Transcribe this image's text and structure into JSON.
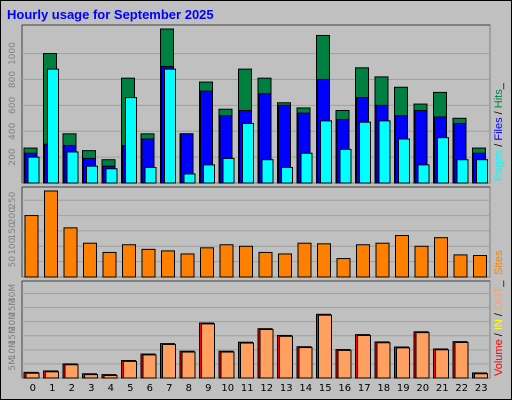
{
  "title": "Hourly usage for September 2025",
  "colors": {
    "hits": "#008040",
    "files": "#0000ff",
    "pages": "#00ffff",
    "sites": "#ff8000",
    "volume": "#ff0000",
    "volume_in": "#ffff00",
    "volume_out": "#ffa060"
  },
  "chart_data": [
    {
      "type": "bar",
      "title": "Hourly usage for September 2025",
      "categories": [
        "0",
        "1",
        "2",
        "3",
        "4",
        "5",
        "6",
        "7",
        "8",
        "9",
        "10",
        "11",
        "12",
        "13",
        "14",
        "15",
        "16",
        "17",
        "18",
        "19",
        "20",
        "21",
        "22",
        "23"
      ],
      "ylim": [
        0,
        1190
      ],
      "yticks": [
        "200",
        "400",
        "600",
        "800",
        "1000"
      ],
      "ytick_values": [
        200,
        400,
        600,
        800,
        1000
      ],
      "legend": [
        "Pages",
        "/",
        "Files",
        "/",
        "Hits",
        "_"
      ],
      "series": [
        {
          "name": "Hits",
          "values": [
            270,
            1000,
            380,
            250,
            180,
            810,
            380,
            1190,
            380,
            780,
            570,
            880,
            810,
            620,
            580,
            1140,
            560,
            890,
            820,
            740,
            610,
            700,
            500,
            270
          ]
        },
        {
          "name": "Files",
          "values": [
            230,
            300,
            290,
            190,
            130,
            290,
            340,
            900,
            380,
            710,
            520,
            560,
            690,
            600,
            540,
            800,
            490,
            660,
            600,
            520,
            560,
            510,
            460,
            230
          ]
        },
        {
          "name": "Pages",
          "values": [
            200,
            880,
            240,
            130,
            110,
            660,
            120,
            880,
            70,
            140,
            190,
            460,
            180,
            120,
            230,
            480,
            260,
            470,
            480,
            340,
            140,
            350,
            180,
            180
          ]
        }
      ]
    },
    {
      "type": "bar",
      "categories": [
        "0",
        "1",
        "2",
        "3",
        "4",
        "5",
        "6",
        "7",
        "8",
        "9",
        "10",
        "11",
        "12",
        "13",
        "14",
        "15",
        "16",
        "17",
        "18",
        "19",
        "20",
        "21",
        "22",
        "23"
      ],
      "ylim": [
        0,
        280
      ],
      "yticks": [
        "50",
        "100",
        "150",
        "200",
        "250"
      ],
      "ytick_values": [
        50,
        100,
        150,
        200,
        250
      ],
      "legend": [
        "Sites"
      ],
      "series": [
        {
          "name": "Sites",
          "values": [
            200,
            280,
            160,
            110,
            80,
            105,
            90,
            85,
            75,
            95,
            105,
            100,
            80,
            75,
            110,
            108,
            60,
            105,
            110,
            135,
            100,
            128,
            72,
            70
          ]
        }
      ]
    },
    {
      "type": "bar",
      "categories": [
        "0",
        "1",
        "2",
        "3",
        "4",
        "5",
        "6",
        "7",
        "8",
        "9",
        "10",
        "11",
        "12",
        "13",
        "14",
        "15",
        "16",
        "17",
        "18",
        "19",
        "20",
        "21",
        "22",
        "23"
      ],
      "ylim": [
        0,
        33
      ],
      "yticks": [
        "5M",
        "10M",
        "15M",
        "20M",
        "25M",
        "30M"
      ],
      "ytick_values": [
        5,
        10,
        15,
        20,
        25,
        30
      ],
      "legend": [
        "Volume",
        "/",
        "IN",
        "/",
        "OUT",
        "_"
      ],
      "series": [
        {
          "name": "Volume",
          "values": [
            2,
            2.5,
            5,
            1.5,
            1.2,
            6.2,
            8.5,
            12.2,
            9.5,
            19.5,
            9.5,
            12.7,
            17.5,
            15.1,
            11.1,
            22.6,
            10.1,
            15.4,
            12.8,
            11,
            16.4,
            10.3,
            12.9,
            1.8
          ]
        },
        {
          "name": "OUT",
          "values": [
            1.7,
            2.2,
            4.7,
            1.2,
            0.9,
            5.9,
            8.2,
            11.9,
            9.2,
            19.2,
            9.2,
            12.4,
            17.2,
            14.8,
            10.8,
            22.3,
            9.8,
            15.1,
            12.5,
            10.7,
            16.1,
            10,
            12.6,
            1.5
          ]
        }
      ]
    }
  ]
}
